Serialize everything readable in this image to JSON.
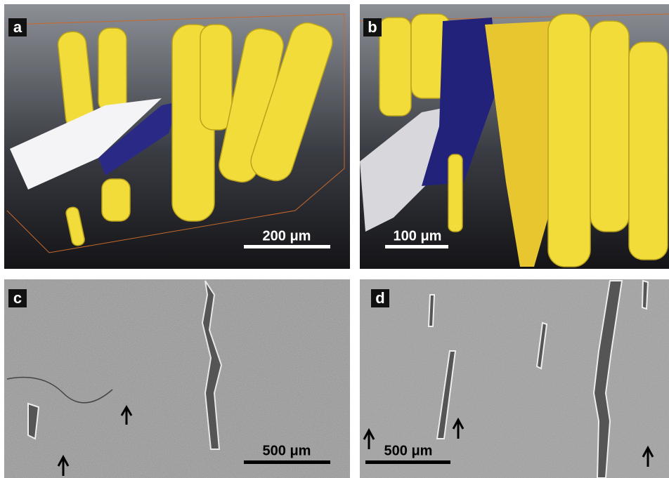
{
  "panels": [
    {
      "label": "a",
      "scale_bar": "200 μm"
    },
    {
      "label": "b",
      "scale_bar": "100 μm"
    },
    {
      "label": "c",
      "scale_bar": "500 μm"
    },
    {
      "label": "d",
      "scale_bar": "500 μm"
    }
  ]
}
